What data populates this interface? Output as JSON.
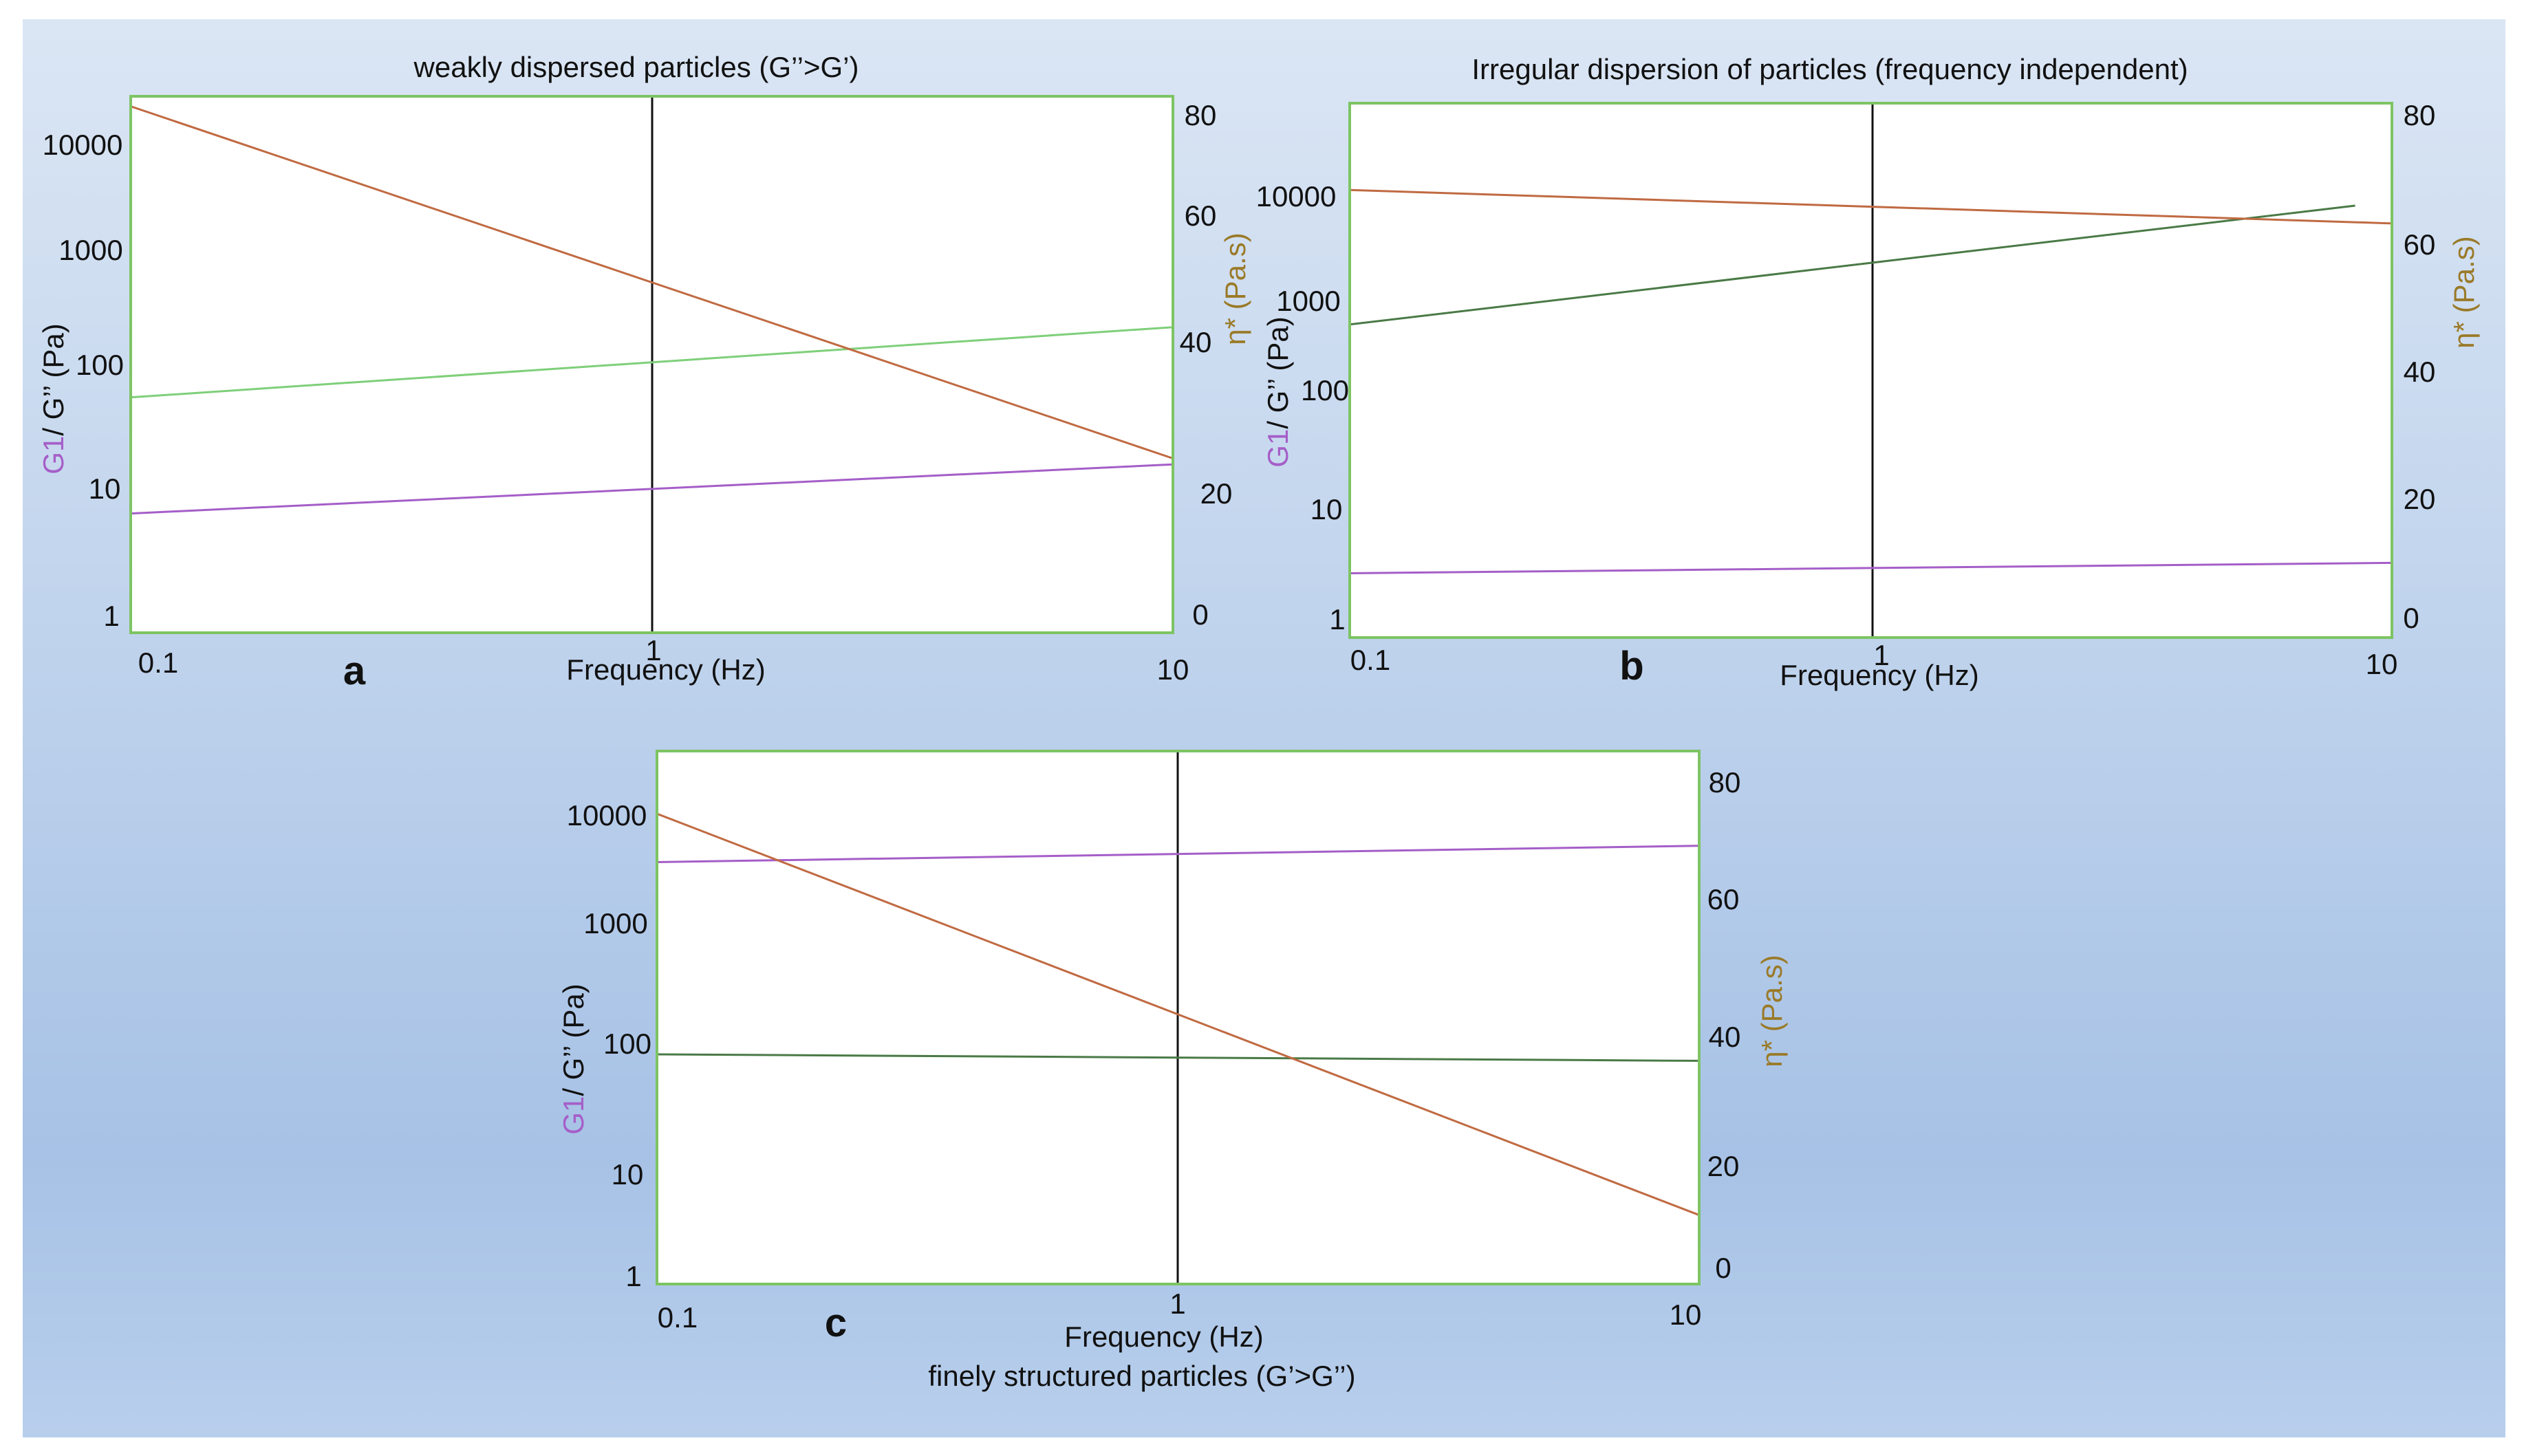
{
  "colors": {
    "g_prime": "#a55ec8",
    "g_double_prime_light": "#7fcf7a",
    "g_double_prime_dark": "#4a7a46",
    "eta": "#c06a42",
    "frame": "#7dc464",
    "eta_label": "#9a7a28"
  },
  "chart_data": [
    {
      "type": "line",
      "panel_letter": "a",
      "title": "weakly dispersed particles (G’’>G’)",
      "xlabel": "Frequency (Hz)",
      "ylabel_left_parts": [
        "G1",
        "/ G’’ (Pa)"
      ],
      "ylabel_right_parts": [
        "η*",
        " (Pa.s)"
      ],
      "x_scale": "log",
      "xlim": [
        0.1,
        10
      ],
      "x_ticks": [
        "0.1",
        "1",
        "10"
      ],
      "y_left_scale": "log",
      "y_left_lim": [
        1,
        25000
      ],
      "y_left_ticks": [
        "1",
        "10",
        "100",
        "1000",
        "10000"
      ],
      "y_right_lim": [
        0,
        80
      ],
      "y_right_ticks": [
        "0",
        "20",
        "40",
        "60",
        "80"
      ],
      "series": [
        {
          "name": "G1",
          "axis": "left",
          "x": [
            0.1,
            10
          ],
          "values": [
            9.5,
            24
          ]
        },
        {
          "name": "G’’",
          "axis": "left",
          "x": [
            0.1,
            10
          ],
          "values": [
            85,
            320
          ]
        },
        {
          "name": "η*",
          "axis": "right",
          "x": [
            0.1,
            10
          ],
          "values": [
            78.5,
            26
          ]
        }
      ]
    },
    {
      "type": "line",
      "panel_letter": "b",
      "title": "Irregular dispersion of particles (frequency independent)",
      "xlabel": "Frequency (Hz)",
      "ylabel_left_parts": [
        "G1",
        "/ G’’ (Pa)"
      ],
      "ylabel_right_parts": [
        "η*",
        " (Pa.s)"
      ],
      "x_scale": "log",
      "xlim": [
        0.1,
        10
      ],
      "x_ticks": [
        "0.1",
        "1",
        "10"
      ],
      "y_left_scale": "log",
      "y_left_lim": [
        1,
        100000
      ],
      "y_left_ticks": [
        "1",
        "10",
        "100",
        "1000",
        "10000"
      ],
      "y_right_lim": [
        0,
        80
      ],
      "y_right_ticks": [
        "0",
        "20",
        "40",
        "60",
        "80"
      ],
      "series": [
        {
          "name": "G1",
          "axis": "left",
          "x": [
            0.1,
            10
          ],
          "values": [
            4,
            5
          ]
        },
        {
          "name": "G’’",
          "axis": "left",
          "x": [
            0.1,
            8.5
          ],
          "values": [
            850,
            11000
          ]
        },
        {
          "name": "η*",
          "axis": "right",
          "x": [
            0.1,
            10
          ],
          "values": [
            67,
            62
          ]
        }
      ]
    },
    {
      "type": "line",
      "panel_letter": "c",
      "title": "finely structured particles (G’>G’’)",
      "xlabel": "Frequency (Hz)",
      "ylabel_left_parts": [
        "G1",
        "/ G’’ (Pa)"
      ],
      "ylabel_right_parts": [
        "η*",
        " (Pa.s)"
      ],
      "x_scale": "log",
      "xlim": [
        0.1,
        10
      ],
      "x_ticks": [
        "0.1",
        "1",
        "10"
      ],
      "y_left_scale": "log",
      "y_left_lim": [
        1,
        30000
      ],
      "y_left_ticks": [
        "1",
        "10",
        "100",
        "1000",
        "10000"
      ],
      "y_right_lim": [
        0,
        85
      ],
      "y_right_ticks": [
        "0",
        "20",
        "40",
        "60",
        "80"
      ],
      "series": [
        {
          "name": "G1",
          "axis": "left",
          "x": [
            0.1,
            10
          ],
          "values": [
            3500,
            4800
          ]
        },
        {
          "name": "G’’",
          "axis": "left",
          "x": [
            0.1,
            10
          ],
          "values": [
            85,
            75
          ]
        },
        {
          "name": "η*",
          "axis": "right",
          "x": [
            0.1,
            10
          ],
          "values": [
            75,
            11
          ]
        }
      ]
    }
  ]
}
